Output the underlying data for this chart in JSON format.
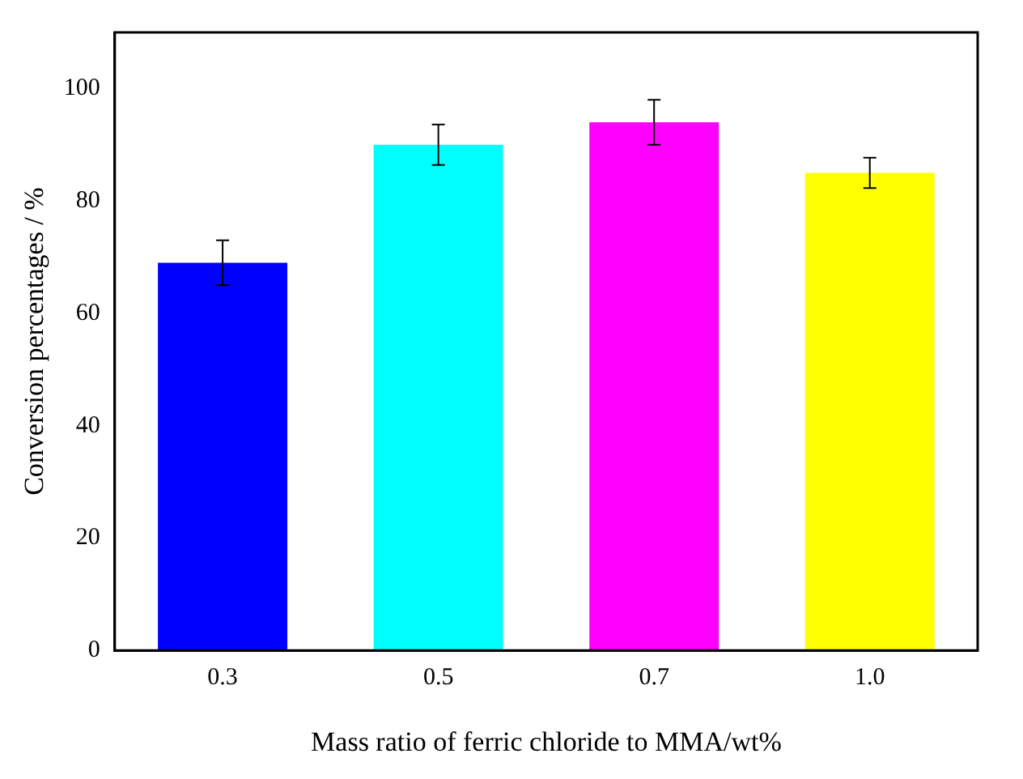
{
  "chart_data": {
    "type": "bar",
    "xlabel": "Mass ratio of ferric chloride to MMA/wt%",
    "ylabel": "Conversion percentages / %",
    "categories": [
      "0.3",
      "0.5",
      "0.7",
      "1.0"
    ],
    "values": [
      69,
      90,
      94,
      85
    ],
    "errors": [
      4,
      3.6,
      4,
      2.7
    ],
    "colors": [
      "#0000ff",
      "#00ffff",
      "#ff00ff",
      "#ffff00"
    ],
    "ylim": [
      0,
      110
    ],
    "yticks": [
      0,
      20,
      40,
      60,
      80,
      100
    ],
    "grid": false,
    "legend": false
  }
}
